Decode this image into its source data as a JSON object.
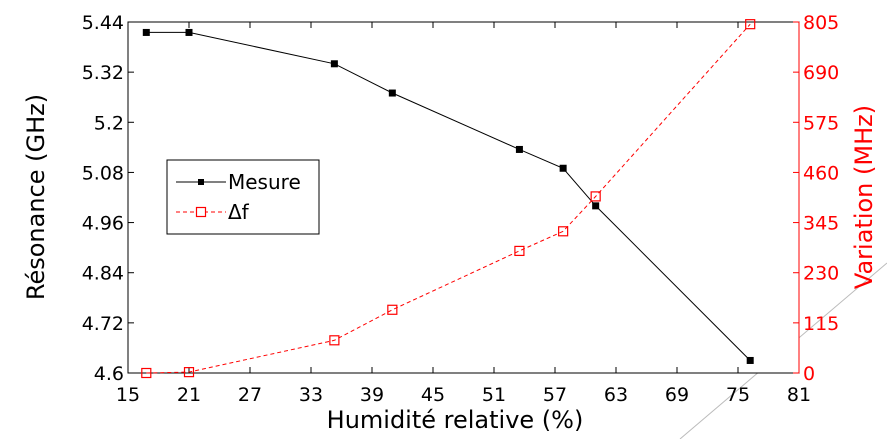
{
  "chart_data": {
    "type": "line",
    "xlabel": "Humidité relative (%)",
    "ylabel_left": "Résonance (GHz)",
    "ylabel_right": "Variation (MHz)",
    "xlim": [
      15,
      81
    ],
    "ylim_left": [
      4.6,
      5.44
    ],
    "ylim_right": [
      0,
      805
    ],
    "x_ticks": [
      "15",
      "21",
      "27",
      "33",
      "39",
      "45",
      "51",
      "57",
      "63",
      "69",
      "75",
      "81"
    ],
    "y_left_ticks": [
      "4.6",
      "4.72",
      "4.84",
      "4.96",
      "5.08",
      "5.2",
      "5.32",
      "5.44"
    ],
    "y_right_ticks": [
      "0",
      "115",
      "230",
      "345",
      "460",
      "575",
      "690",
      "805"
    ],
    "grid": false,
    "legend_position": "center-left",
    "series": [
      {
        "name": "Mesure",
        "axis": "left",
        "color": "#000000",
        "line_style": "solid",
        "marker": "filled-square",
        "x": [
          16.8,
          21.0,
          35.3,
          41.0,
          53.5,
          57.8,
          61.0,
          76.2
        ],
        "y": [
          5.415,
          5.415,
          5.34,
          5.27,
          5.135,
          5.09,
          5.0,
          4.63
        ]
      },
      {
        "name": "Δf",
        "axis": "right",
        "color": "#ff0000",
        "line_style": "dashed",
        "marker": "open-square",
        "x": [
          16.8,
          21.0,
          35.3,
          41.0,
          53.5,
          57.8,
          61.0,
          76.2
        ],
        "y": [
          0,
          2,
          75,
          145,
          280,
          325,
          405,
          800
        ]
      }
    ]
  }
}
